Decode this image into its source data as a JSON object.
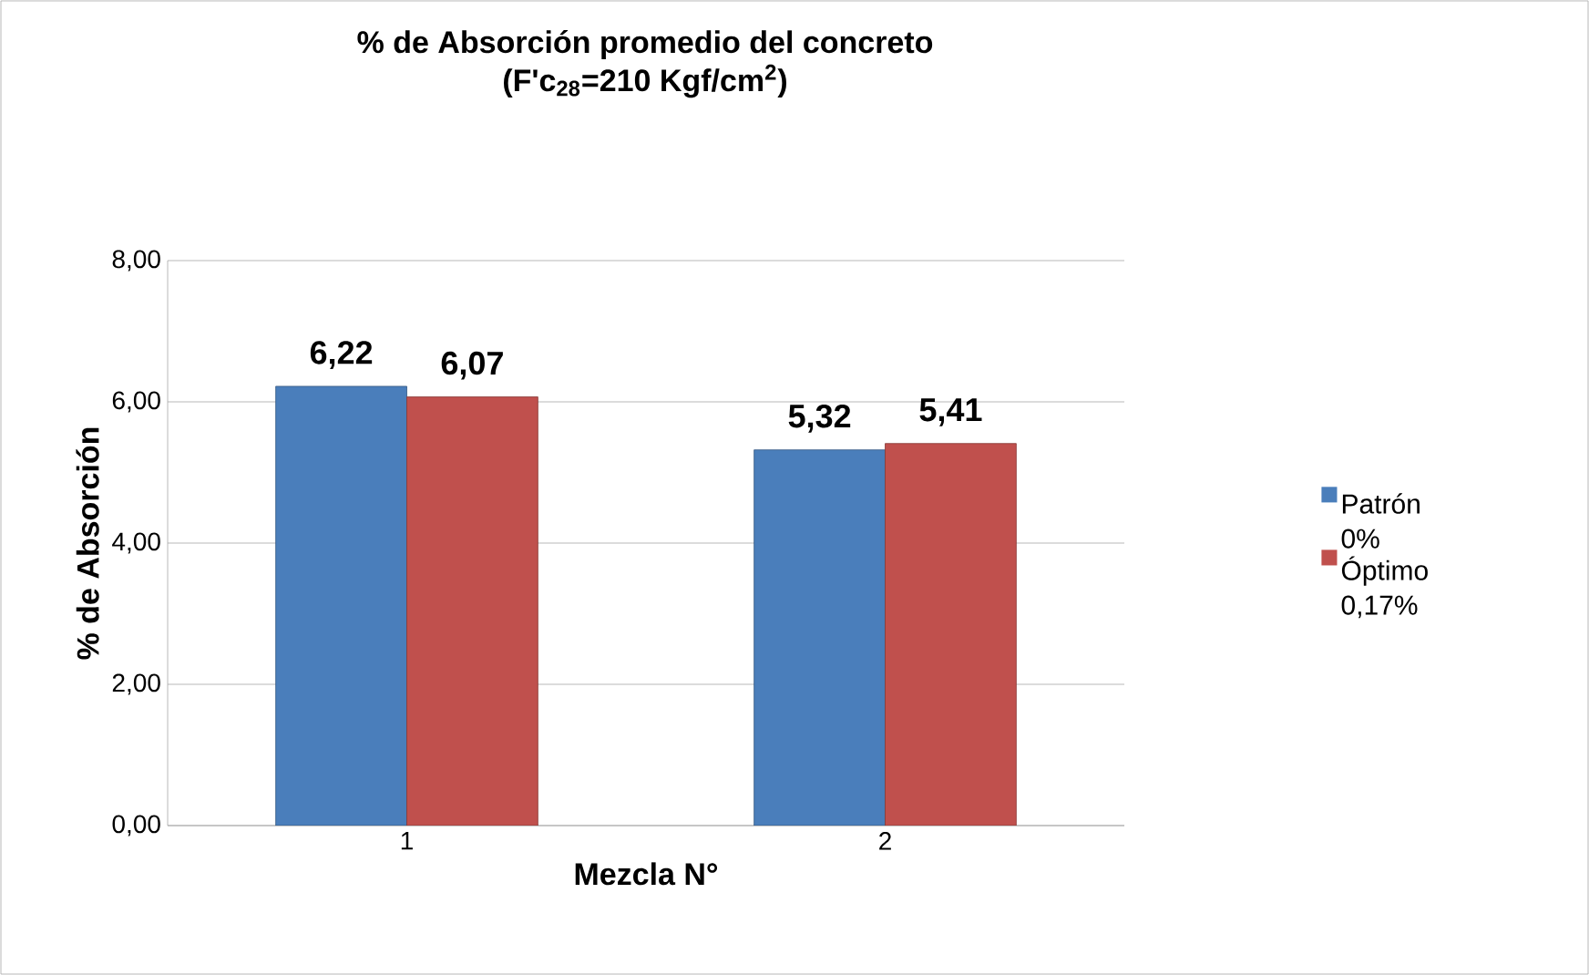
{
  "chart_data": {
    "type": "bar",
    "title": "% de Absorción promedio del concreto",
    "subtitle": "(F'c$_{28}$=210 Kgf/cm$^{2}$)",
    "xlabel": "Mezcla  N°",
    "ylabel": "% de Absorción",
    "categories": [
      "1",
      "2"
    ],
    "series": [
      {
        "name": "Patrón 0%",
        "color": "#4a7ebb",
        "values": [
          6.22,
          5.32
        ],
        "value_labels": [
          "6,22",
          "5,32"
        ]
      },
      {
        "name": "Óptimo 0,17%",
        "color": "#c0504d",
        "values": [
          6.07,
          5.41
        ],
        "value_labels": [
          "6,07",
          "5,41"
        ]
      }
    ],
    "ylim": [
      0,
      8
    ],
    "yticks": [
      {
        "value": 0,
        "label": "0,00"
      },
      {
        "value": 2,
        "label": "2,00"
      },
      {
        "value": 4,
        "label": "4,00"
      },
      {
        "value": 6,
        "label": "6,00"
      },
      {
        "value": 8,
        "label": "8,00"
      }
    ],
    "grid": "y",
    "legend": "right"
  }
}
